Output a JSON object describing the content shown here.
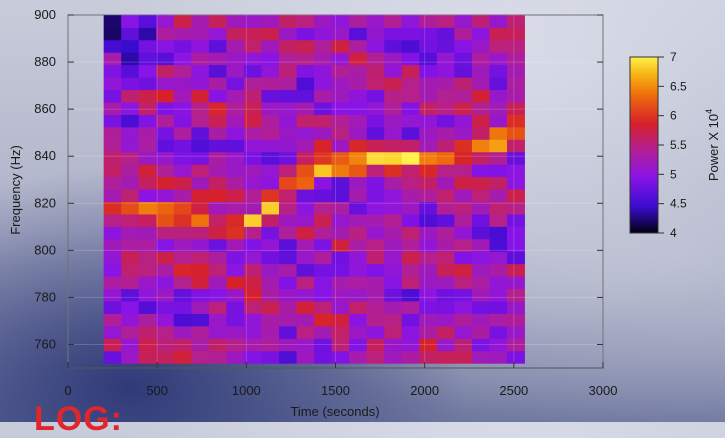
{
  "logo_text": "LOG:",
  "chart_data": {
    "type": "heatmap",
    "title": "",
    "xlabel": "Time (seconds)",
    "ylabel": "Frequency (Hz)",
    "xlim": [
      0,
      3000
    ],
    "ylim": [
      750,
      900
    ],
    "x_ticks": [
      0,
      500,
      1000,
      1500,
      2000,
      2500,
      3000
    ],
    "y_ticks": [
      760,
      780,
      800,
      820,
      840,
      860,
      880,
      900
    ],
    "x_range_data": [
      200,
      2560
    ],
    "y_range_data": [
      752,
      900
    ],
    "ridge": {
      "description_points_time": [
        250,
        400,
        600,
        800,
        1000,
        1200,
        1400,
        1600,
        1800,
        2000,
        2200,
        2400,
        2550
      ],
      "frequency_hz": [
        817,
        817,
        816,
        810,
        808,
        826,
        834,
        838,
        840,
        838,
        842,
        846,
        850
      ]
    },
    "colorbar": {
      "label": "Power X 10",
      "label_superscript": "4",
      "ticks": [
        "4",
        "4.5",
        "5",
        "5.5",
        "6",
        "6.5",
        "7"
      ],
      "range": [
        4,
        7
      ],
      "colors": [
        "#000010",
        "#3a0bd0",
        "#8a14e6",
        "#b4208f",
        "#d6202b",
        "#ee6a0c",
        "#f7b414",
        "#fff14a"
      ]
    },
    "grid": true
  }
}
